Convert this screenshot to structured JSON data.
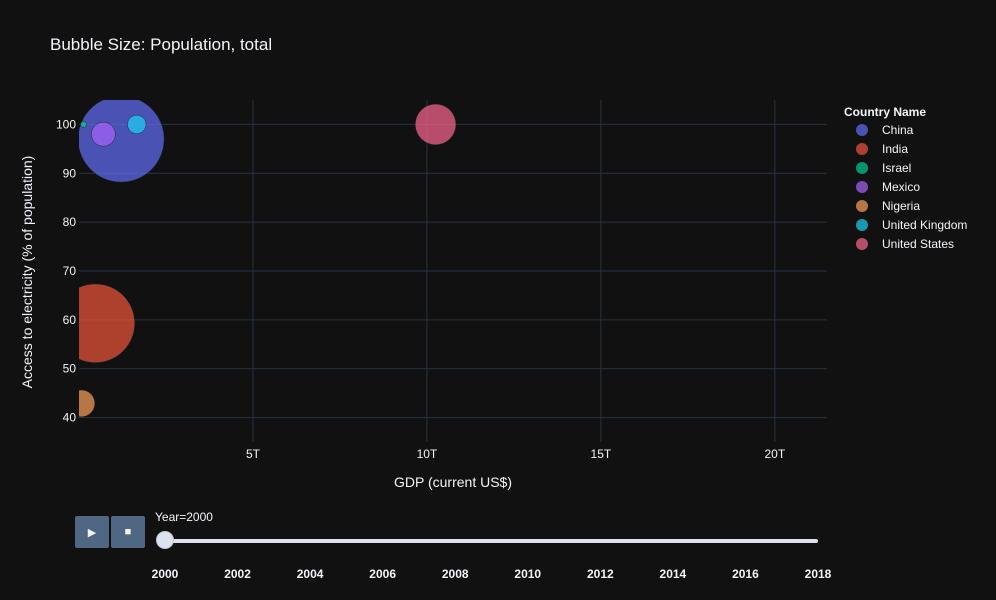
{
  "chart_data": {
    "type": "scatter",
    "title": "Bubble Size: Population, total",
    "xlabel": "GDP (current US$)",
    "ylabel": "Access to electricity (% of population)",
    "xlim": [
      0,
      21.5
    ],
    "ylim": [
      35,
      105
    ],
    "x_ticks": [
      {
        "value": 5,
        "label": "5T"
      },
      {
        "value": 10,
        "label": "10T"
      },
      {
        "value": 15,
        "label": "15T"
      },
      {
        "value": 20,
        "label": "20T"
      }
    ],
    "y_ticks": [
      40,
      50,
      60,
      70,
      80,
      90,
      100
    ],
    "grid": true,
    "legend_title": "Country Name",
    "legend_placement": "right",
    "x_unit_note": "trillions of US$",
    "size_variable": "Population, total",
    "series": [
      {
        "name": "China",
        "color": "#636efa",
        "x": 1.21,
        "y": 97,
        "size": 1262645000
      },
      {
        "name": "India",
        "color": "#EF553B",
        "x": 0.47,
        "y": 59.3,
        "size": 1056576000
      },
      {
        "name": "Israel",
        "color": "#00cc96",
        "x": 0.13,
        "y": 100,
        "size": 6289000
      },
      {
        "name": "Mexico",
        "color": "#ab63fa",
        "x": 0.7,
        "y": 98,
        "size": 98900000
      },
      {
        "name": "Nigeria",
        "color": "#FFA15A",
        "x": 0.07,
        "y": 42.9,
        "size": 122350000
      },
      {
        "name": "United Kingdom",
        "color": "#19d3f3",
        "x": 1.66,
        "y": 100,
        "size": 58890000
      },
      {
        "name": "United States",
        "color": "#FF6692",
        "x": 10.25,
        "y": 100,
        "size": 282160000
      }
    ]
  },
  "slider": {
    "current_label": "Year=2000",
    "current_value": 2000,
    "ticks": [
      "2000",
      "2002",
      "2004",
      "2006",
      "2008",
      "2010",
      "2012",
      "2014",
      "2016",
      "2018"
    ]
  },
  "controls": {
    "play_icon": "play-icon",
    "stop_icon": "stop-icon"
  }
}
